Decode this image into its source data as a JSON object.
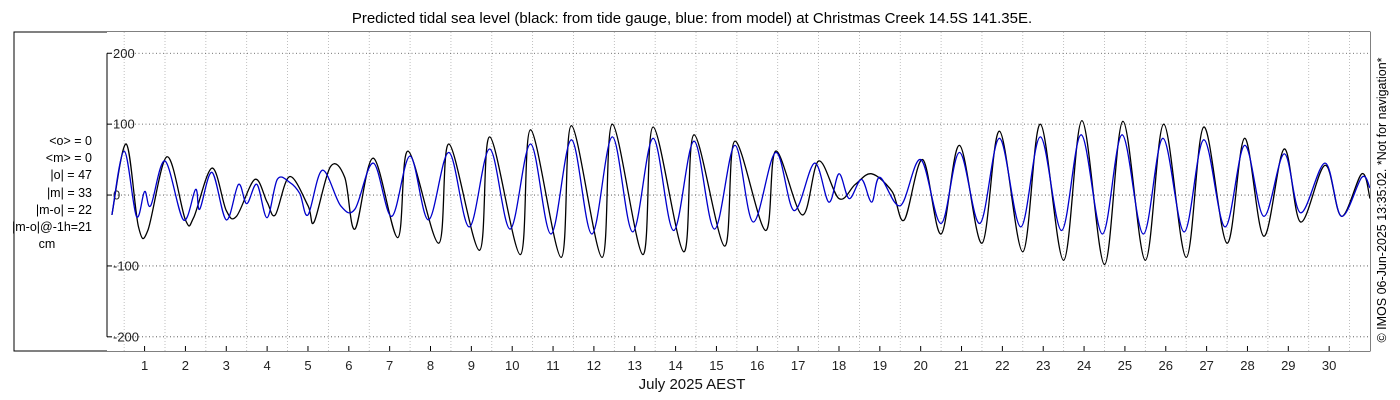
{
  "chart_data": {
    "type": "line",
    "title": "Predicted tidal sea level (black: from tide gauge, blue: from model) at Christmas Creek 14.5S 141.35E.",
    "xlabel": "July 2025 AEST",
    "ylabel": "",
    "xlim": [
      0.08,
      31.0
    ],
    "ylim": [
      -220,
      230
    ],
    "yticks": [
      -200,
      -100,
      0,
      100,
      200
    ],
    "xticks": [
      1,
      2,
      3,
      4,
      5,
      6,
      7,
      8,
      9,
      10,
      11,
      12,
      13,
      14,
      15,
      16,
      17,
      18,
      19,
      20,
      21,
      22,
      23,
      24,
      25,
      26,
      27,
      28,
      29,
      30
    ],
    "grid": {
      "x_dotted": true,
      "y_dotted": true
    },
    "series": [
      {
        "name": "from tide gauge",
        "color": "#000000",
        "points": [
          [
            0.2,
            -28
          ],
          [
            0.55,
            72
          ],
          [
            0.85,
            -45
          ],
          [
            1.08,
            -50
          ],
          [
            1.55,
            54
          ],
          [
            2.0,
            -35
          ],
          [
            2.2,
            -32
          ],
          [
            2.65,
            38
          ],
          [
            3.0,
            -22
          ],
          [
            3.25,
            -30
          ],
          [
            3.7,
            22
          ],
          [
            4.0,
            -10
          ],
          [
            4.2,
            -28
          ],
          [
            4.55,
            26
          ],
          [
            5.0,
            -15
          ],
          [
            5.15,
            -38
          ],
          [
            5.55,
            40
          ],
          [
            5.9,
            25
          ],
          [
            6.15,
            -48
          ],
          [
            6.6,
            52
          ],
          [
            7.2,
            -60
          ],
          [
            7.45,
            62
          ],
          [
            8.2,
            -68
          ],
          [
            8.45,
            72
          ],
          [
            9.2,
            -78
          ],
          [
            9.45,
            82
          ],
          [
            10.2,
            -84
          ],
          [
            10.45,
            92
          ],
          [
            11.2,
            -88
          ],
          [
            11.45,
            98
          ],
          [
            12.2,
            -88
          ],
          [
            12.45,
            100
          ],
          [
            13.2,
            -84
          ],
          [
            13.45,
            96
          ],
          [
            14.2,
            -80
          ],
          [
            14.45,
            85
          ],
          [
            15.2,
            -72
          ],
          [
            15.45,
            76
          ],
          [
            16.2,
            -50
          ],
          [
            16.45,
            62
          ],
          [
            17.1,
            -28
          ],
          [
            17.5,
            48
          ],
          [
            18.0,
            -5
          ],
          [
            18.4,
            15
          ],
          [
            18.8,
            30
          ],
          [
            19.3,
            5
          ],
          [
            19.6,
            -35
          ],
          [
            20.05,
            50
          ],
          [
            20.5,
            -55
          ],
          [
            20.95,
            70
          ],
          [
            21.5,
            -68
          ],
          [
            21.93,
            90
          ],
          [
            22.5,
            -80
          ],
          [
            22.93,
            100
          ],
          [
            23.5,
            -92
          ],
          [
            23.95,
            105
          ],
          [
            24.5,
            -98
          ],
          [
            24.95,
            104
          ],
          [
            25.5,
            -92
          ],
          [
            25.95,
            100
          ],
          [
            26.5,
            -88
          ],
          [
            26.93,
            96
          ],
          [
            27.5,
            -68
          ],
          [
            27.93,
            80
          ],
          [
            28.4,
            -58
          ],
          [
            28.9,
            65
          ],
          [
            29.3,
            -38
          ],
          [
            29.9,
            42
          ],
          [
            30.3,
            -30
          ],
          [
            30.8,
            30
          ],
          [
            31.0,
            -5
          ]
        ]
      },
      {
        "name": "from model",
        "color": "#0000cc",
        "points": [
          [
            0.2,
            -28
          ],
          [
            0.5,
            62
          ],
          [
            0.8,
            -30
          ],
          [
            1.0,
            5
          ],
          [
            1.15,
            -15
          ],
          [
            1.5,
            48
          ],
          [
            1.95,
            -35
          ],
          [
            2.25,
            8
          ],
          [
            2.35,
            -20
          ],
          [
            2.65,
            32
          ],
          [
            3.0,
            -35
          ],
          [
            3.3,
            15
          ],
          [
            3.5,
            -12
          ],
          [
            3.75,
            15
          ],
          [
            4.0,
            -32
          ],
          [
            4.25,
            22
          ],
          [
            4.55,
            18
          ],
          [
            4.8,
            2
          ],
          [
            5.0,
            -28
          ],
          [
            5.35,
            35
          ],
          [
            5.8,
            -15
          ],
          [
            6.15,
            -20
          ],
          [
            6.6,
            45
          ],
          [
            7.05,
            -30
          ],
          [
            7.5,
            55
          ],
          [
            7.95,
            -35
          ],
          [
            8.45,
            60
          ],
          [
            8.95,
            -45
          ],
          [
            9.45,
            65
          ],
          [
            9.95,
            -48
          ],
          [
            10.45,
            72
          ],
          [
            10.95,
            -55
          ],
          [
            11.45,
            78
          ],
          [
            11.95,
            -55
          ],
          [
            12.45,
            82
          ],
          [
            12.95,
            -52
          ],
          [
            13.45,
            80
          ],
          [
            13.95,
            -50
          ],
          [
            14.45,
            76
          ],
          [
            14.95,
            -48
          ],
          [
            15.45,
            70
          ],
          [
            15.9,
            -38
          ],
          [
            16.45,
            60
          ],
          [
            16.9,
            -22
          ],
          [
            17.4,
            45
          ],
          [
            17.75,
            -10
          ],
          [
            18.0,
            30
          ],
          [
            18.25,
            -5
          ],
          [
            18.55,
            22
          ],
          [
            18.8,
            -10
          ],
          [
            19.0,
            25
          ],
          [
            19.5,
            -15
          ],
          [
            20.0,
            50
          ],
          [
            20.5,
            -40
          ],
          [
            20.95,
            60
          ],
          [
            21.45,
            -40
          ],
          [
            21.93,
            80
          ],
          [
            22.45,
            -45
          ],
          [
            22.93,
            82
          ],
          [
            23.45,
            -50
          ],
          [
            23.93,
            85
          ],
          [
            24.45,
            -55
          ],
          [
            24.93,
            85
          ],
          [
            25.45,
            -55
          ],
          [
            25.93,
            80
          ],
          [
            26.45,
            -52
          ],
          [
            26.93,
            78
          ],
          [
            27.45,
            -45
          ],
          [
            27.93,
            70
          ],
          [
            28.4,
            -30
          ],
          [
            28.9,
            58
          ],
          [
            29.3,
            -25
          ],
          [
            29.9,
            45
          ],
          [
            30.3,
            -30
          ],
          [
            30.8,
            25
          ],
          [
            31.0,
            10
          ]
        ]
      }
    ]
  },
  "stats": {
    "mean_obs": "<o> = 0",
    "mean_model": "<m> = 0",
    "abs_obs": "|o| = 47",
    "abs_model": "|m| = 33",
    "abs_diff": "|m-o| = 22",
    "abs_diff_lag": "|m-o|@-1h=21",
    "unit": "cm"
  },
  "stamp": "© IMOS 06-Jun-2025 13:35:02. *Not for navigation*"
}
